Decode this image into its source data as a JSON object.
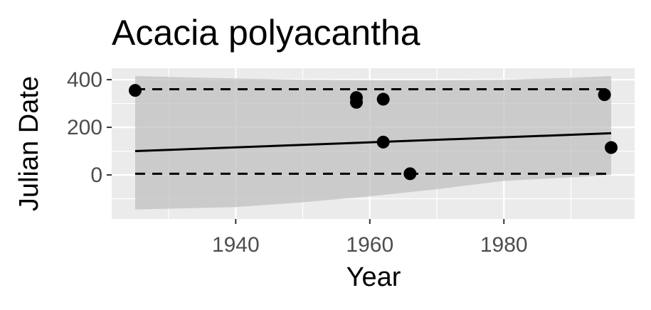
{
  "chart_data": {
    "type": "scatter",
    "title": "Acacia polyacantha",
    "xlabel": "Year",
    "ylabel": "Julian Date",
    "xlim": [
      1921.5,
      1999.5
    ],
    "ylim": [
      -185,
      448
    ],
    "x_ticks": [
      1940,
      1960,
      1980
    ],
    "y_ticks": [
      0,
      200,
      400
    ],
    "grid": true,
    "legend": "none",
    "colors": {
      "panel": "#ebebeb",
      "grid": "#ffffff",
      "points": "#000000",
      "ribbon": "#c0c0c0",
      "tick_text": "#4d4d4d"
    },
    "points": [
      {
        "x": 1925,
        "y": 355
      },
      {
        "x": 1958,
        "y": 325
      },
      {
        "x": 1958,
        "y": 305
      },
      {
        "x": 1962,
        "y": 318
      },
      {
        "x": 1962,
        "y": 138
      },
      {
        "x": 1966,
        "y": 5
      },
      {
        "x": 1995,
        "y": 337
      },
      {
        "x": 1996,
        "y": 115
      }
    ],
    "fit_line": [
      {
        "x": 1925,
        "y": 100
      },
      {
        "x": 1996,
        "y": 175
      }
    ],
    "upper_dashed": [
      {
        "x": 1925,
        "y": 360
      },
      {
        "x": 1996,
        "y": 360
      }
    ],
    "lower_dashed": [
      {
        "x": 1925,
        "y": 5
      },
      {
        "x": 1996,
        "y": 5
      }
    ],
    "ribbon": {
      "x": [
        1925,
        1940,
        1950,
        1960,
        1970,
        1980,
        1990,
        1996
      ],
      "upper": [
        415,
        405,
        400,
        398,
        398,
        400,
        408,
        415
      ],
      "lower": [
        -145,
        -135,
        -115,
        -90,
        -60,
        -25,
        -10,
        0
      ]
    }
  }
}
